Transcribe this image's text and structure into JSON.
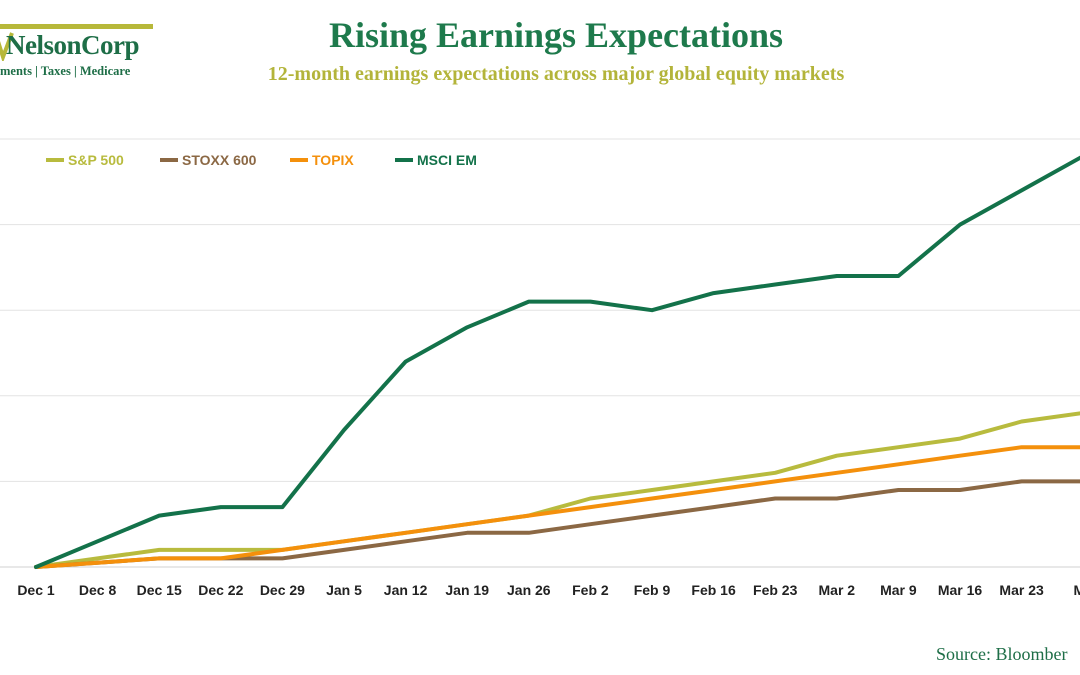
{
  "brand": {
    "name": "NelsonCorp",
    "tagline": "ments | Taxes | Medicare"
  },
  "header": {
    "title": "Rising Earnings Expectations",
    "subtitle": "12-month earnings expectations across major global equity markets"
  },
  "footer": {
    "source": "Source: Bloomber"
  },
  "chart_data": {
    "type": "line",
    "title": "Rising Earnings Expectations",
    "subtitle": "12-month earnings expectations across major global equity markets",
    "xlabel": "",
    "ylabel": "",
    "x": [
      "Dec 1",
      "Dec 8",
      "Dec 15",
      "Dec 22",
      "Dec 29",
      "Jan 5",
      "Jan 12",
      "Jan 19",
      "Jan 26",
      "Feb 2",
      "Feb 9",
      "Feb 16",
      "Feb 23",
      "Mar 2",
      "Mar 9",
      "Mar 16",
      "Mar 23",
      "Ma"
    ],
    "ylim": [
      0,
      5
    ],
    "grid": true,
    "legend_position": "top-left",
    "series": [
      {
        "name": "S&P 500",
        "color": "#b8bb3e",
        "values": [
          0,
          0.1,
          0.2,
          0.2,
          0.2,
          0.3,
          0.4,
          0.5,
          0.6,
          0.8,
          0.9,
          1.0,
          1.1,
          1.3,
          1.4,
          1.5,
          1.7,
          1.8
        ]
      },
      {
        "name": "STOXX 600",
        "color": "#8b6844",
        "values": [
          0,
          0.05,
          0.1,
          0.1,
          0.1,
          0.2,
          0.3,
          0.4,
          0.4,
          0.5,
          0.6,
          0.7,
          0.8,
          0.8,
          0.9,
          0.9,
          1.0,
          1.0
        ]
      },
      {
        "name": "TOPIX",
        "color": "#f4900c",
        "values": [
          0,
          0.05,
          0.1,
          0.1,
          0.2,
          0.3,
          0.4,
          0.5,
          0.6,
          0.7,
          0.8,
          0.9,
          1.0,
          1.1,
          1.2,
          1.3,
          1.4,
          1.4
        ]
      },
      {
        "name": "MSCI EM",
        "color": "#13724a",
        "values": [
          0,
          0.3,
          0.6,
          0.7,
          0.7,
          1.6,
          2.4,
          2.8,
          3.1,
          3.1,
          3.0,
          3.2,
          3.3,
          3.4,
          3.4,
          4.0,
          4.4,
          4.8
        ]
      }
    ]
  }
}
